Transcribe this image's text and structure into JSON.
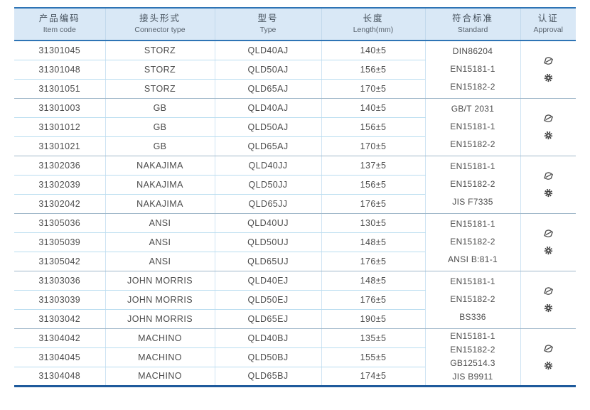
{
  "colors": {
    "accent": "#2e74b5",
    "accent_dark": "#1e5a9c",
    "header_bg": "#d9e8f6",
    "row_line": "#b9ddf0",
    "col_line": "#cfe4f3",
    "group_line": "#9fb7c9",
    "text": "#4c4c4c"
  },
  "table": {
    "columns": [
      {
        "zh": "产品编码",
        "en": "Item code"
      },
      {
        "zh": "接头形式",
        "en": "Connector type"
      },
      {
        "zh": "型号",
        "en": "Type"
      },
      {
        "zh": "长度",
        "en": "Length(mm)"
      },
      {
        "zh": "符合标准",
        "en": "Standard"
      },
      {
        "zh": "认证",
        "en": "Approval"
      }
    ],
    "groups": [
      {
        "rows": [
          {
            "item_code": "31301045",
            "connector_type": "STORZ",
            "type": "QLD40AJ",
            "length": "140±5"
          },
          {
            "item_code": "31301048",
            "connector_type": "STORZ",
            "type": "QLD50AJ",
            "length": "156±5"
          },
          {
            "item_code": "31301051",
            "connector_type": "STORZ",
            "type": "QLD65AJ",
            "length": "170±5"
          }
        ],
        "standards": [
          "DIN86204",
          "EN15181-1",
          "EN15182-2"
        ],
        "approval_icons": [
          "ccs-class-logo-icon",
          "type-approval-gear-icon"
        ]
      },
      {
        "rows": [
          {
            "item_code": "31301003",
            "connector_type": "GB",
            "type": "QLD40AJ",
            "length": "140±5"
          },
          {
            "item_code": "31301012",
            "connector_type": "GB",
            "type": "QLD50AJ",
            "length": "156±5"
          },
          {
            "item_code": "31301021",
            "connector_type": "GB",
            "type": "QLD65AJ",
            "length": "170±5"
          }
        ],
        "standards": [
          "GB/T 2031",
          "EN15181-1",
          "EN15182-2"
        ],
        "approval_icons": [
          "ccs-class-logo-icon",
          "type-approval-gear-icon"
        ]
      },
      {
        "rows": [
          {
            "item_code": "31302036",
            "connector_type": "NAKAJIMA",
            "type": "QLD40JJ",
            "length": "137±5"
          },
          {
            "item_code": "31302039",
            "connector_type": "NAKAJIMA",
            "type": "QLD50JJ",
            "length": "156±5"
          },
          {
            "item_code": "31302042",
            "connector_type": "NAKAJIMA",
            "type": "QLD65JJ",
            "length": "176±5"
          }
        ],
        "standards": [
          "EN15181-1",
          "EN15182-2",
          "JIS F7335"
        ],
        "approval_icons": [
          "ccs-class-logo-icon",
          "type-approval-gear-icon"
        ]
      },
      {
        "rows": [
          {
            "item_code": "31305036",
            "connector_type": "ANSI",
            "type": "QLD40UJ",
            "length": "130±5"
          },
          {
            "item_code": "31305039",
            "connector_type": "ANSI",
            "type": "QLD50UJ",
            "length": "148±5"
          },
          {
            "item_code": "31305042",
            "connector_type": "ANSI",
            "type": "QLD65UJ",
            "length": "176±5"
          }
        ],
        "standards": [
          "EN15181-1",
          "EN15182-2",
          "ANSI B:81-1"
        ],
        "approval_icons": [
          "ccs-class-logo-icon",
          "type-approval-gear-icon"
        ]
      },
      {
        "rows": [
          {
            "item_code": "31303036",
            "connector_type": "JOHN MORRIS",
            "type": "QLD40EJ",
            "length": "148±5"
          },
          {
            "item_code": "31303039",
            "connector_type": "JOHN MORRIS",
            "type": "QLD50EJ",
            "length": "176±5"
          },
          {
            "item_code": "31303042",
            "connector_type": "JOHN MORRIS",
            "type": "QLD65EJ",
            "length": "190±5"
          }
        ],
        "standards": [
          "EN15181-1",
          "EN15182-2",
          "BS336"
        ],
        "approval_icons": [
          "ccs-class-logo-icon",
          "type-approval-gear-icon"
        ]
      },
      {
        "rows": [
          {
            "item_code": "31304042",
            "connector_type": "MACHINO",
            "type": "QLD40BJ",
            "length": "135±5"
          },
          {
            "item_code": "31304045",
            "connector_type": "MACHINO",
            "type": "QLD50BJ",
            "length": "155±5"
          },
          {
            "item_code": "31304048",
            "connector_type": "MACHINO",
            "type": "QLD65BJ",
            "length": "174±5"
          }
        ],
        "standards": [
          "EN15181-1",
          "EN15182-2",
          "GB12514.3",
          "JIS B9911"
        ],
        "approval_icons": [
          "ccs-class-logo-icon",
          "type-approval-gear-icon"
        ]
      }
    ]
  }
}
